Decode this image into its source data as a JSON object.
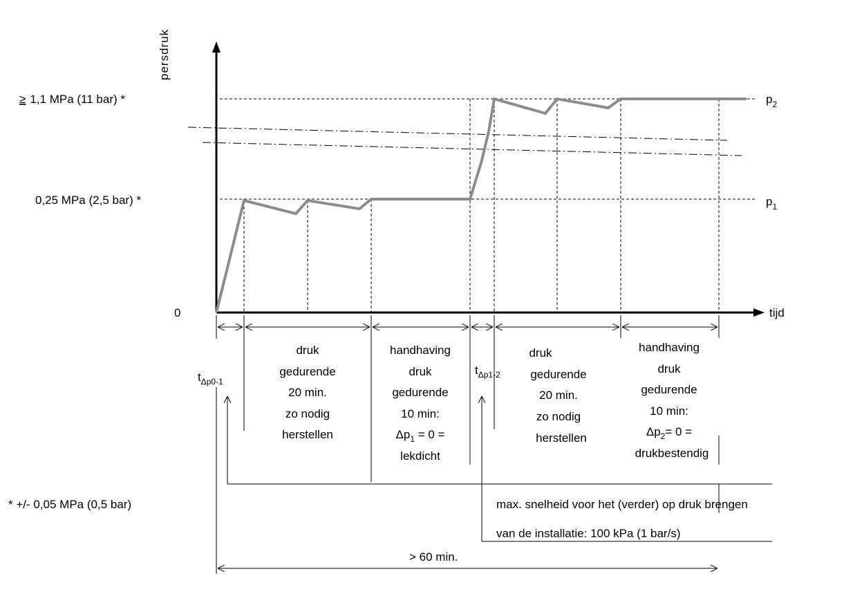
{
  "axes": {
    "y_label": "persdruk",
    "x_label": "tijd",
    "origin": "0"
  },
  "levels": {
    "high": {
      "ge_symbol": "≥",
      "text": "1,1 MPa  (11 bar) *",
      "name_base": "p",
      "name_sub": "2"
    },
    "low": {
      "text": "0,25 MPa  (2,5 bar) *",
      "name_base": "p",
      "name_sub": "1"
    }
  },
  "delta_t_1": {
    "base": "t",
    "sub": "Δp0-1"
  },
  "delta_t_2": {
    "base": "t",
    "sub": "Δp1-2"
  },
  "phase_1_lines": [
    "druk",
    "gedurende",
    "20 min.",
    "zo nodig",
    "herstellen"
  ],
  "phase_2": {
    "lines": [
      "handhaving",
      "druk",
      "gedurende",
      "10 min:"
    ],
    "eq_base": "Δp",
    "eq_sub": "1",
    "eq_rest": " = 0 =",
    "last": "lekdicht"
  },
  "phase_3_lines": [
    "druk",
    "gedurende",
    "20 min.",
    "zo nodig",
    "herstellen"
  ],
  "phase_4": {
    "lines": [
      "handhaving",
      "druk",
      "gedurende",
      "10 min:"
    ],
    "eq_base": "Δp",
    "eq_sub": "2",
    "eq_rest": "= 0 =",
    "last": "drukbestendig"
  },
  "tolerance_note": "*  +/- 0,05 MPa (0,5 bar)",
  "max_speed_line1": "max. snelheid voor het (verder) op druk brengen",
  "max_speed_line2": "van de installatie:  100 kPa (1 bar/s)",
  "total_duration": "> 60 min."
}
